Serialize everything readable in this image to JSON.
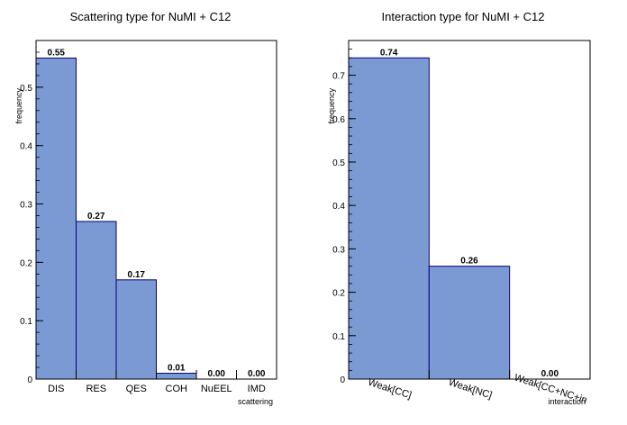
{
  "chart_data": [
    {
      "type": "bar",
      "title": "Scattering type for NuMI + C12",
      "xlabel": "scattering",
      "ylabel": "frequency",
      "categories": [
        "DIS",
        "RES",
        "QES",
        "COH",
        "NuEEL",
        "IMD"
      ],
      "values": [
        0.55,
        0.27,
        0.17,
        0.01,
        0.0,
        0.0
      ],
      "value_labels": [
        "0.55",
        "0.27",
        "0.17",
        "0.01",
        "0.00",
        "0.00"
      ],
      "ylim": [
        0,
        0.58
      ],
      "yticks": [
        0,
        0.1,
        0.2,
        0.3,
        0.4,
        0.5
      ],
      "ytick_labels": [
        "0",
        "0.1",
        "0.2",
        "0.3",
        "0.4",
        "0.5"
      ],
      "bar_color": "#7b9ad4",
      "edge_color": "#00007a",
      "grid": false
    },
    {
      "type": "bar",
      "title": "Interaction type for NuMI + C12",
      "xlabel": "interaction",
      "ylabel": "frequency",
      "categories": [
        "Weak[CC]",
        "Weak[NC]",
        "Weak[CC+NC+in"
      ],
      "values": [
        0.74,
        0.26,
        0.0
      ],
      "value_labels": [
        "0.74",
        "0.26",
        "0.00"
      ],
      "ylim": [
        0,
        0.78
      ],
      "yticks": [
        0,
        0.1,
        0.2,
        0.3,
        0.4,
        0.5,
        0.6,
        0.7
      ],
      "ytick_labels": [
        "0",
        "0.1",
        "0.2",
        "0.3",
        "0.4",
        "0.5",
        "0.6",
        "0.7"
      ],
      "bar_color": "#7b9ad4",
      "edge_color": "#00007a",
      "grid": false
    }
  ]
}
